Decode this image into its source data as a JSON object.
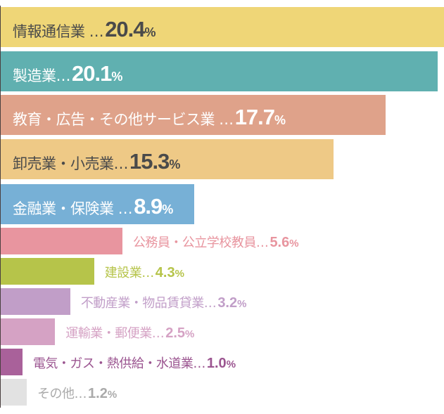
{
  "chart_data": {
    "type": "bar",
    "orientation": "horizontal",
    "title": "",
    "xlabel": "",
    "ylabel": "",
    "unit": "%",
    "xlim": [
      0,
      20.4
    ],
    "grid": false,
    "categories": [
      "情報通信業",
      "製造業",
      "教育・広告・その他サービス業",
      "卸売業・小売業",
      "金融業・保険業",
      "公務員・公立学校教員",
      "建設業",
      "不動産業・物品賃貸業",
      "運輸業・郵便業",
      "電気・ガス・熱供給・水道業",
      "その他"
    ],
    "label_texts": [
      "情報通信業 …",
      "製造業…",
      "教育・広告・その他サービス業 …",
      "卸売業・小売業…",
      "金融業・保険業 …",
      "公務員・公立学校教員…",
      "建設業…",
      "不動産業・物品賃貸業…",
      "運輸業・郵便業…",
      "電気・ガス・熱供給・水道業…",
      "その他…"
    ],
    "value_texts": [
      "20.4",
      "20.1",
      "17.7",
      "15.3",
      "8.9",
      "5.6",
      "4.3",
      "3.2",
      "2.5",
      "1.0",
      "1.2"
    ],
    "values": [
      20.4,
      20.1,
      17.7,
      15.3,
      8.9,
      5.6,
      4.3,
      3.2,
      2.5,
      1.0,
      1.2
    ],
    "percent_sign": "%",
    "colors": [
      "#efd677",
      "#60b0b0",
      "#dfa28a",
      "#eec986",
      "#77b0d6",
      "#e8959f",
      "#b6c44a",
      "#c19ec8",
      "#d5a2c4",
      "#a9619a",
      "#e2e2e2"
    ],
    "label_colors": [
      "#4a4a4a",
      "#ffffff",
      "#ffffff",
      "#4a4a4a",
      "#ffffff",
      "#e8959f",
      "#b6c44a",
      "#c19ec8",
      "#d5a2c4",
      "#9b5590",
      "#aaaaaa"
    ]
  }
}
